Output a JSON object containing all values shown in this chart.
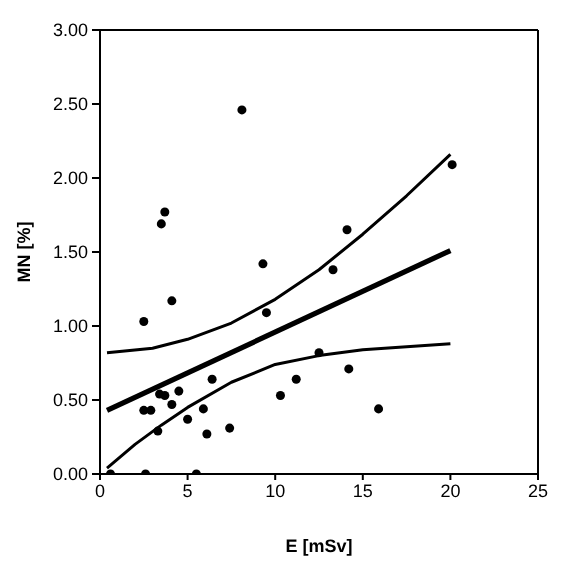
{
  "chart_data": {
    "type": "scatter",
    "xlabel": "E [mSv]",
    "ylabel": "MN [%]",
    "xlim": [
      0,
      25
    ],
    "xticks": [
      0,
      5,
      10,
      15,
      20,
      25
    ],
    "ylim": [
      0,
      3
    ],
    "yticks": [
      {
        "value": 0,
        "label": "0.00"
      },
      {
        "value": 0.5,
        "label": "0.50"
      },
      {
        "value": 1,
        "label": "1.00"
      },
      {
        "value": 1.5,
        "label": "1.50"
      },
      {
        "value": 2,
        "label": "2.00"
      },
      {
        "value": 2.5,
        "label": "2.50"
      },
      {
        "value": 3,
        "label": "3.00"
      }
    ],
    "grid": false,
    "legend": false,
    "marker": "circle",
    "series": [
      {
        "type": "scatter",
        "color": "#000000",
        "x": [
          0.6,
          2.6,
          5.5,
          2.5,
          3.7,
          3.5,
          8.1,
          9.3,
          13.3,
          4.1,
          9.5,
          2.5,
          2.9,
          3.4,
          3.7,
          4.5,
          4.1,
          3.3,
          5.0,
          5.9,
          6.1,
          6.4,
          7.4,
          10.3,
          11.2,
          12.5,
          20.1,
          14.1,
          14.2,
          15.9
        ],
        "values": [
          0,
          0,
          0,
          1.03,
          1.77,
          1.69,
          2.46,
          1.42,
          1.38,
          1.17,
          1.09,
          0.43,
          0.43,
          0.54,
          0.53,
          0.56,
          0.47,
          0.29,
          0.37,
          0.44,
          0.27,
          0.64,
          0.31,
          0.53,
          0.64,
          0.82,
          2.09,
          1.65,
          0.71,
          0.44
        ]
      },
      {
        "type": "line",
        "color": "#000000",
        "marker": "none",
        "line_style": "solid",
        "x": [
          0.4,
          20
        ],
        "values": [
          0.43,
          1.51
        ]
      },
      {
        "type": "line",
        "color": "#000000",
        "marker": "none",
        "line_style": "solid",
        "x": [
          0.4,
          3,
          5,
          7.5,
          10,
          12.5,
          15,
          17.5,
          20
        ],
        "values": [
          0.82,
          0.85,
          0.91,
          1.02,
          1.18,
          1.38,
          1.62,
          1.88,
          2.16
        ]
      },
      {
        "type": "line",
        "color": "#000000",
        "marker": "none",
        "line_style": "solid",
        "x": [
          0.4,
          2,
          3.5,
          5,
          7.5,
          10,
          12.5,
          15,
          17.5,
          20
        ],
        "values": [
          0.04,
          0.2,
          0.33,
          0.45,
          0.62,
          0.74,
          0.8,
          0.84,
          0.86,
          0.88
        ]
      }
    ]
  }
}
